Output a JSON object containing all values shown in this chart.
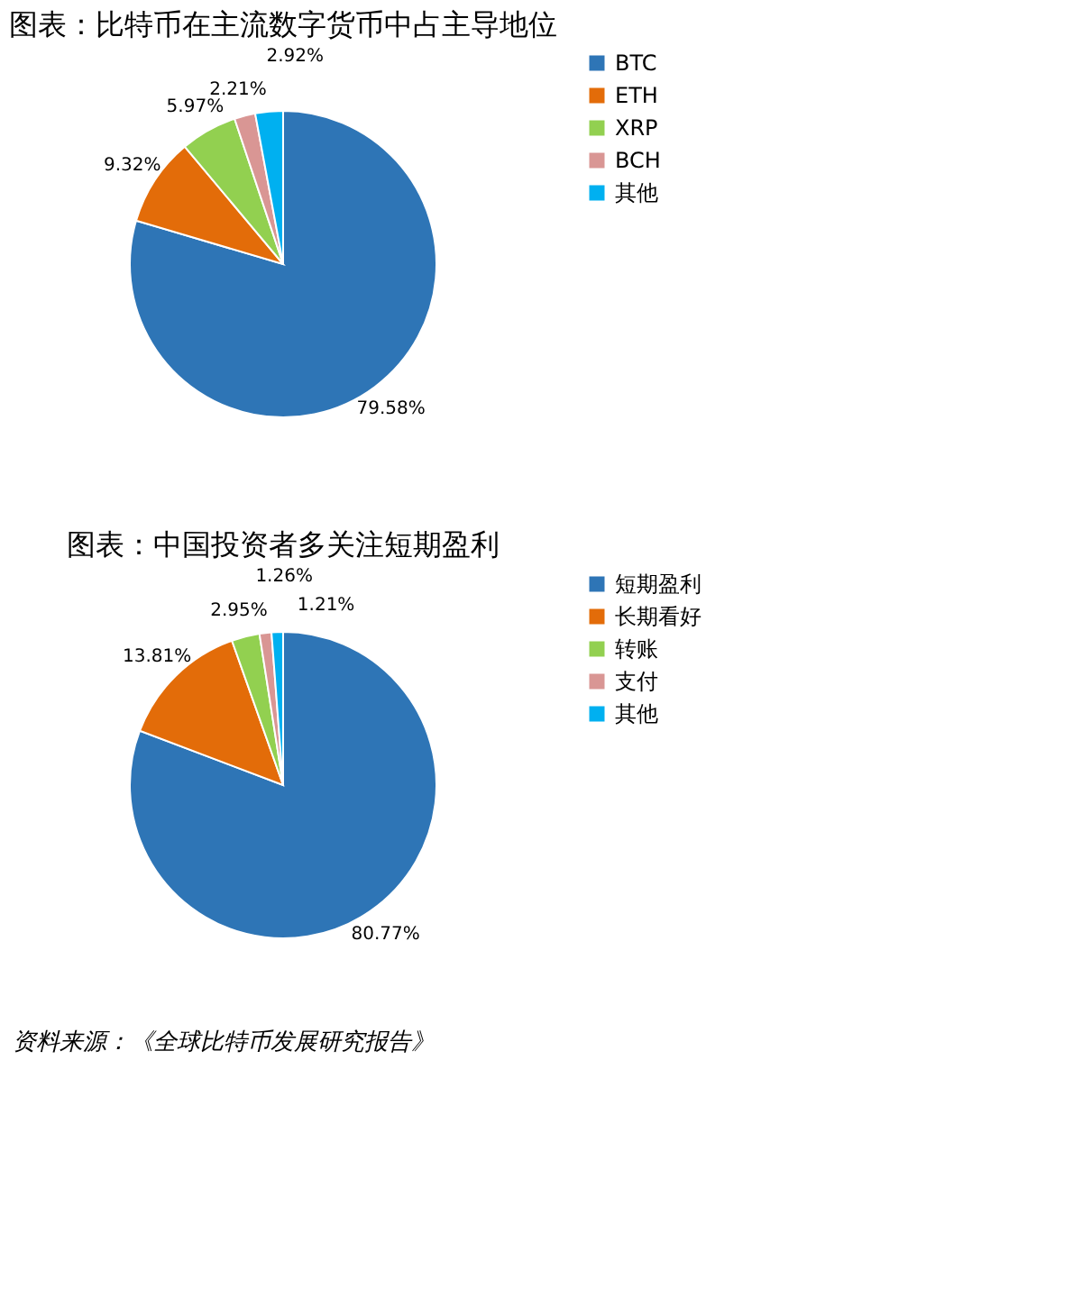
{
  "chart_data": [
    {
      "type": "pie",
      "title": "图表：比特币在主流数字货币中占主导地位",
      "categories": [
        "BTC",
        "ETH",
        "XRP",
        "BCH",
        "其他"
      ],
      "values": [
        79.58,
        9.32,
        5.97,
        2.21,
        2.92
      ],
      "colors": [
        "#2e75b6",
        "#e36c09",
        "#92d050",
        "#d99694",
        "#00b0f0"
      ],
      "value_labels": [
        "79.58%",
        "9.32%",
        "5.97%",
        "2.21%",
        "2.92%"
      ],
      "legend": "right"
    },
    {
      "type": "pie",
      "title": "图表：中国投资者多关注短期盈利",
      "categories": [
        "短期盈利",
        "长期看好",
        "转账",
        "支付",
        "其他"
      ],
      "values": [
        80.77,
        13.81,
        2.95,
        1.26,
        1.21
      ],
      "colors": [
        "#2e75b6",
        "#e36c09",
        "#92d050",
        "#d99694",
        "#00b0f0"
      ],
      "value_labels": [
        "80.77%",
        "13.81%",
        "2.95%",
        "1.26%",
        "1.21%"
      ],
      "legend": "right",
      "annotations": [
        "资料来源：《全球比特币发展研究报告》"
      ]
    }
  ]
}
